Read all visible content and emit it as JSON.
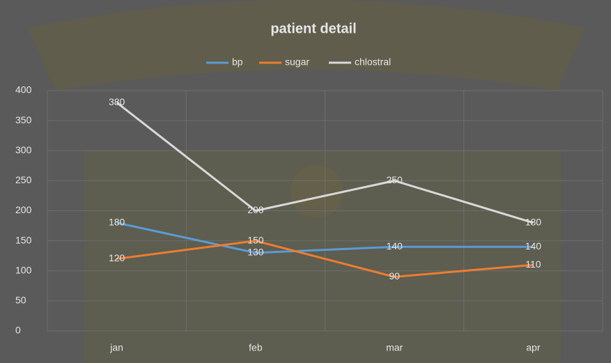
{
  "chart_data": {
    "type": "line",
    "title": "patient detail",
    "categories": [
      "jan",
      "feb",
      "mar",
      "apr"
    ],
    "series": [
      {
        "name": "bp",
        "color": "#5b9bd5",
        "values": [
          180,
          130,
          140,
          140
        ]
      },
      {
        "name": "sugar",
        "color": "#ed7d31",
        "values": [
          120,
          150,
          90,
          110
        ]
      },
      {
        "name": "chlostral",
        "color": "#d9d9d9",
        "values": [
          380,
          200,
          250,
          180
        ]
      }
    ],
    "ylim": [
      0,
      400
    ],
    "yticks": [
      0,
      50,
      100,
      150,
      200,
      250,
      300,
      350,
      400
    ],
    "grid": true,
    "legend": "top",
    "data_labels": true
  }
}
